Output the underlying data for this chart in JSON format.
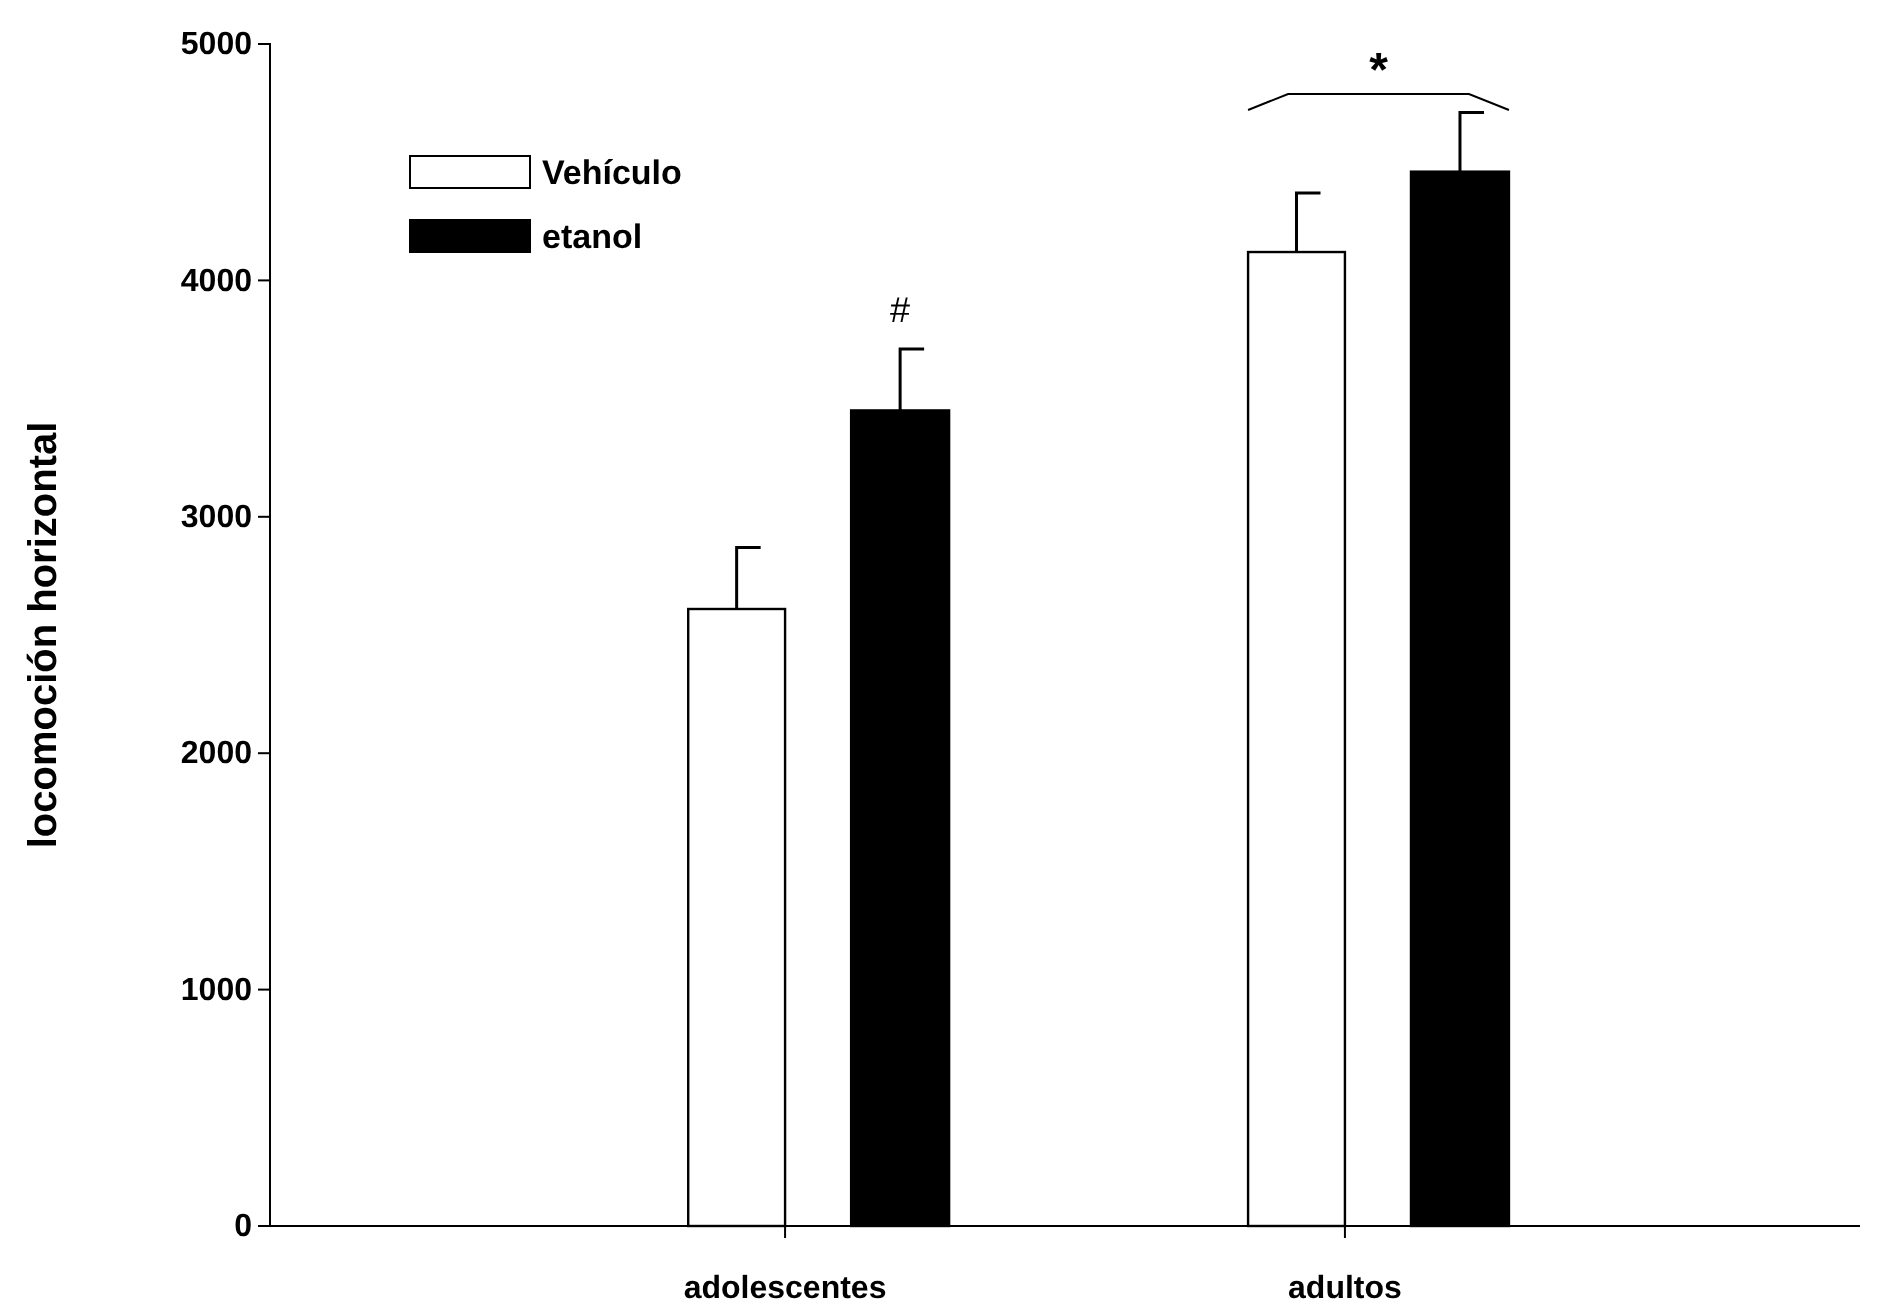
{
  "chart_data": {
    "type": "bar",
    "ylabel": "locomoción horizontal",
    "categories": [
      "adolescentes",
      "adultos"
    ],
    "series": [
      {
        "name": "Vehículo",
        "color": "#ffffff",
        "values": [
          2610,
          4120
        ],
        "errors": [
          [
            2610,
            2870
          ],
          [
            4120,
            4370
          ]
        ]
      },
      {
        "name": "etanol",
        "color": "#000000",
        "values": [
          3450,
          4460
        ],
        "errors": [
          [
            3450,
            3710
          ],
          [
            4460,
            4710
          ]
        ]
      }
    ],
    "ylim": [
      0,
      5000
    ],
    "yticks": [
      0,
      1000,
      2000,
      3000,
      4000,
      5000
    ],
    "legend": "top left",
    "grid": false,
    "annotations": [
      "#",
      "*"
    ]
  }
}
